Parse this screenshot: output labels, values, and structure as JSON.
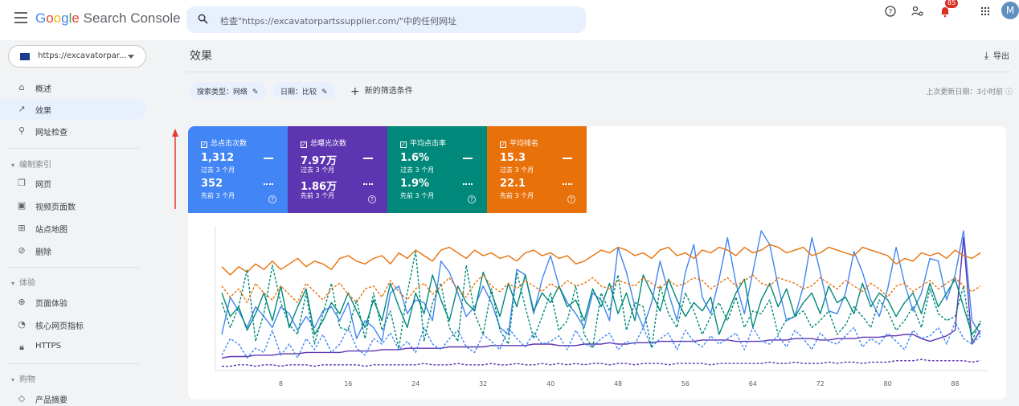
{
  "header": {
    "brand_google": "Google",
    "brand_product": " Search Console",
    "search_placeholder": "检查\"https://excavatorpartssupplier.com/\"中的任何网址",
    "notification_count": "85",
    "avatar_letter": "M",
    "help_icon": "help-icon",
    "account_settings_icon": "manage-accounts-icon",
    "apps_icon": "apps-grid-icon"
  },
  "sidebar": {
    "property": "https://excavatorpar...",
    "items": [
      {
        "label": "概述",
        "icon": "home-icon"
      },
      {
        "label": "效果",
        "icon": "trending-up-icon",
        "active": true
      },
      {
        "label": "网址检查",
        "icon": "search-icon"
      }
    ],
    "sections": [
      {
        "title": "编制索引",
        "items": [
          {
            "label": "网页",
            "icon": "pages-icon"
          },
          {
            "label": "视频页面数",
            "icon": "video-page-icon"
          },
          {
            "label": "站点地图",
            "icon": "sitemap-icon"
          },
          {
            "label": "删除",
            "icon": "visibility-off-icon"
          }
        ]
      },
      {
        "title": "体验",
        "items": [
          {
            "label": "页面体验",
            "icon": "add-circle-icon"
          },
          {
            "label": "核心网页指标",
            "icon": "speed-icon"
          },
          {
            "label": "HTTPS",
            "icon": "lock-icon"
          }
        ]
      },
      {
        "title": "购物",
        "items": [
          {
            "label": "产品摘要",
            "icon": "diamond-icon"
          }
        ]
      }
    ]
  },
  "main": {
    "title": "效果",
    "export_label": "导出",
    "filters": [
      "搜索类型：网络",
      "日期：比较"
    ],
    "new_filter": "新的筛选条件",
    "last_updated": "上次更新日期：3小时前"
  },
  "metrics": [
    {
      "label": "总点击次数",
      "value": "1,312",
      "period": "过去 3 个月",
      "prev_value": "352",
      "prev_period": "先前 3 个月",
      "color": "#4285f4"
    },
    {
      "label": "总曝光次数",
      "value": "7.97万",
      "period": "过去 3 个月",
      "prev_value": "1.86万",
      "prev_period": "先前 3 个月",
      "color": "#5e35b1"
    },
    {
      "label": "平均点击率",
      "value": "1.6%",
      "period": "过去 3 个月",
      "prev_value": "1.9%",
      "prev_period": "先前 3 个月",
      "color": "#00897b"
    },
    {
      "label": "平均排名",
      "value": "15.3",
      "period": "过去 3 个月",
      "prev_value": "22.1",
      "prev_period": "先前 3 个月",
      "color": "#e8710a"
    }
  ],
  "chart_data": {
    "type": "line",
    "x": [
      1,
      2,
      3,
      4,
      5,
      6,
      7,
      8,
      9,
      10,
      11,
      12,
      13,
      14,
      15,
      16,
      17,
      18,
      19,
      20,
      21,
      22,
      23,
      24,
      25,
      26,
      27,
      28,
      29,
      30,
      31,
      32,
      33,
      34,
      35,
      36,
      37,
      38,
      39,
      40,
      41,
      42,
      43,
      44,
      45,
      46,
      47,
      48,
      49,
      50,
      51,
      52,
      53,
      54,
      55,
      56,
      57,
      58,
      59,
      60,
      61,
      62,
      63,
      64,
      65,
      66,
      67,
      68,
      69,
      70,
      71,
      72,
      73,
      74,
      75,
      76,
      77,
      78,
      79,
      80,
      81,
      82,
      83,
      84,
      85,
      86,
      87,
      88,
      89,
      90,
      91
    ],
    "xticks": [
      8,
      16,
      24,
      32,
      40,
      48,
      56,
      64,
      72,
      80,
      88
    ],
    "ylim": [
      0,
      100
    ],
    "series": [
      {
        "color": "#4285f4",
        "dashed": false,
        "values": [
          25,
          52,
          42,
          30,
          45,
          38,
          30,
          45,
          40,
          28,
          38,
          30,
          42,
          45,
          35,
          48,
          22,
          35,
          30,
          20,
          55,
          60,
          40,
          50,
          48,
          35,
          78,
          70,
          55,
          38,
          45,
          60,
          48,
          30,
          25,
          72,
          68,
          40,
          65,
          82,
          60,
          48,
          40,
          30,
          55,
          50,
          35,
          88,
          70,
          45,
          30,
          48,
          78,
          55,
          35,
          70,
          90,
          52,
          40,
          65,
          95,
          62,
          40,
          70,
          100,
          90,
          60,
          35,
          38,
          60,
          95,
          70,
          42,
          40,
          55,
          85,
          70,
          50,
          38,
          58,
          88,
          62,
          42,
          55,
          80,
          78,
          50,
          68,
          100,
          35,
          25
        ]
      },
      {
        "color": "#5e35b1",
        "dashed": false,
        "values": [
          8,
          9,
          9,
          9,
          10,
          10,
          10,
          11,
          11,
          11,
          12,
          12,
          12,
          12,
          12,
          13,
          13,
          13,
          13,
          14,
          14,
          14,
          15,
          15,
          15,
          15,
          15,
          16,
          16,
          16,
          16,
          16,
          17,
          17,
          17,
          17,
          17,
          18,
          18,
          18,
          17,
          17,
          17,
          18,
          18,
          18,
          19,
          18,
          18,
          19,
          19,
          19,
          20,
          20,
          20,
          20,
          20,
          21,
          21,
          21,
          21,
          20,
          20,
          20,
          20,
          21,
          21,
          21,
          22,
          22,
          22,
          21,
          21,
          22,
          22,
          22,
          23,
          23,
          23,
          24,
          24,
          25,
          25,
          22,
          20,
          22,
          24,
          28,
          95,
          18,
          28
        ]
      },
      {
        "color": "#00897b",
        "dashed": false,
        "values": [
          55,
          38,
          45,
          28,
          40,
          55,
          35,
          60,
          30,
          45,
          58,
          25,
          35,
          48,
          40,
          55,
          42,
          30,
          50,
          35,
          62,
          45,
          30,
          55,
          40,
          68,
          50,
          35,
          60,
          48,
          42,
          70,
          55,
          38,
          62,
          45,
          68,
          42,
          55,
          48,
          60,
          45,
          50,
          35,
          58,
          45,
          62,
          40,
          55,
          35,
          68,
          55,
          42,
          65,
          50,
          38,
          48,
          42,
          52,
          25,
          40,
          55,
          65,
          30,
          50,
          62,
          45,
          58,
          38,
          48,
          55,
          40,
          60,
          48,
          52,
          40,
          62,
          45,
          55,
          50,
          38,
          48,
          55,
          40,
          62,
          45,
          55,
          65,
          45,
          25,
          33
        ]
      },
      {
        "color": "#e8710a",
        "dashed": false,
        "values": [
          74,
          68,
          74,
          70,
          76,
          72,
          78,
          72,
          76,
          80,
          74,
          78,
          76,
          72,
          80,
          82,
          78,
          76,
          80,
          82,
          76,
          84,
          80,
          86,
          82,
          78,
          86,
          88,
          84,
          80,
          86,
          82,
          84,
          80,
          82,
          78,
          84,
          86,
          82,
          84,
          80,
          82,
          76,
          78,
          82,
          86,
          84,
          88,
          86,
          82,
          84,
          80,
          86,
          88,
          82,
          84,
          80,
          86,
          84,
          88,
          86,
          82,
          88,
          84,
          86,
          90,
          88,
          84,
          86,
          88,
          82,
          84,
          88,
          86,
          84,
          82,
          88,
          86,
          84,
          82,
          76,
          80,
          78,
          84,
          82,
          84,
          80,
          86,
          82,
          80,
          84
        ]
      },
      {
        "color": "#4285f4",
        "dashed": true,
        "values": [
          10,
          22,
          18,
          8,
          15,
          12,
          28,
          10,
          18,
          8,
          22,
          14,
          25,
          12,
          18,
          30,
          15,
          10,
          22,
          18,
          26,
          14,
          20,
          12,
          30,
          18,
          14,
          22,
          28,
          16,
          12,
          25,
          20,
          14,
          30,
          22,
          16,
          26,
          18,
          20,
          24,
          14,
          28,
          18,
          16,
          22,
          26,
          14,
          20,
          18,
          30,
          16,
          22,
          26,
          14,
          28,
          20,
          16,
          24,
          18,
          22,
          26,
          14,
          30,
          20,
          18,
          24,
          16,
          28,
          22,
          14,
          26,
          20,
          18,
          24,
          30,
          16,
          22,
          18,
          26,
          20,
          14,
          28,
          22,
          24,
          30,
          18,
          34,
          22,
          18,
          24
        ]
      },
      {
        "color": "#5e35b1",
        "dashed": true,
        "values": [
          2,
          2,
          3,
          3,
          2,
          3,
          3,
          2,
          3,
          3,
          3,
          2,
          3,
          3,
          3,
          3,
          3,
          2,
          3,
          3,
          3,
          3,
          3,
          3,
          4,
          3,
          3,
          3,
          4,
          3,
          3,
          3,
          4,
          3,
          3,
          4,
          3,
          3,
          4,
          3,
          4,
          3,
          4,
          3,
          4,
          4,
          3,
          4,
          4,
          3,
          4,
          4,
          4,
          3,
          4,
          4,
          4,
          4,
          3,
          4,
          4,
          4,
          4,
          4,
          4,
          5,
          4,
          4,
          5,
          4,
          4,
          4,
          5,
          4,
          5,
          5,
          4,
          5,
          5,
          5,
          6,
          6,
          6,
          7,
          6,
          6,
          6,
          6,
          6,
          5,
          6
        ]
      },
      {
        "color": "#00897b",
        "dashed": true,
        "values": [
          48,
          30,
          45,
          72,
          20,
          40,
          75,
          48,
          32,
          25,
          55,
          18,
          40,
          62,
          30,
          28,
          50,
          22,
          55,
          28,
          42,
          15,
          55,
          85,
          20,
          48,
          62,
          30,
          20,
          75,
          40,
          25,
          58,
          28,
          18,
          70,
          45,
          22,
          38,
          55,
          28,
          35,
          60,
          25,
          15,
          55,
          42,
          68,
          28,
          48,
          45,
          15,
          60,
          40,
          30,
          55,
          42,
          25,
          38,
          48,
          35,
          52,
          30,
          42,
          40,
          50,
          25,
          36,
          38,
          42,
          30,
          35,
          42,
          25,
          32,
          45,
          38,
          30,
          50,
          42,
          28,
          35,
          45,
          30,
          58,
          40,
          35,
          38,
          60,
          20,
          35
        ]
      },
      {
        "color": "#e8710a",
        "dashed": true,
        "values": [
          60,
          52,
          58,
          48,
          62,
          55,
          50,
          60,
          54,
          48,
          62,
          56,
          50,
          58,
          62,
          54,
          48,
          58,
          60,
          52,
          64,
          56,
          50,
          58,
          62,
          54,
          60,
          66,
          58,
          52,
          62,
          68,
          60,
          56,
          62,
          58,
          64,
          60,
          56,
          62,
          58,
          64,
          60,
          62,
          66,
          60,
          58,
          64,
          62,
          60,
          66,
          62,
          58,
          64,
          60,
          62,
          66,
          64,
          58,
          62,
          66,
          60,
          64,
          68,
          62,
          60,
          66,
          64,
          62,
          58,
          60,
          66,
          62,
          58,
          64,
          60,
          56,
          62,
          58,
          52,
          60,
          62,
          56,
          60,
          64,
          58,
          62,
          66,
          60,
          56,
          60
        ]
      }
    ]
  }
}
